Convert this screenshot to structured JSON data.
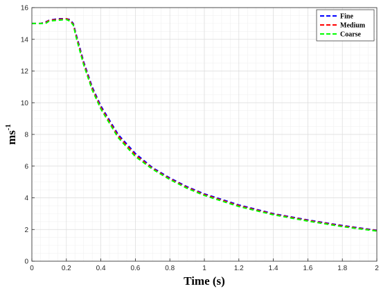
{
  "chart_data": {
    "type": "line",
    "xlabel": "Time (s)",
    "ylabel_base": "ms",
    "ylabel_exp": "-1",
    "xlim": [
      0,
      2
    ],
    "ylim": [
      0,
      16
    ],
    "xticks": [
      0,
      0.2,
      0.4,
      0.6,
      0.8,
      1,
      1.2,
      1.4,
      1.6,
      1.8,
      2
    ],
    "xtick_labels": [
      "0",
      "0.2",
      "0.4",
      "0.6",
      "0.8",
      "1",
      "1.2",
      "1.4",
      "1.6",
      "1.8",
      "2"
    ],
    "yticks": [
      0,
      2,
      4,
      6,
      8,
      10,
      12,
      14,
      16
    ],
    "ytick_labels": [
      "0",
      "2",
      "4",
      "6",
      "8",
      "10",
      "12",
      "14",
      "16"
    ],
    "grid": true,
    "legend_position": "top-right",
    "series": [
      {
        "name": "Fine",
        "color": "#0000ff",
        "x": [
          0,
          0.05,
          0.08,
          0.1,
          0.15,
          0.2,
          0.22,
          0.24,
          0.26,
          0.3,
          0.35,
          0.4,
          0.5,
          0.6,
          0.7,
          0.8,
          0.9,
          1.0,
          1.2,
          1.4,
          1.6,
          1.8,
          2.0
        ],
        "y": [
          15.0,
          15.0,
          15.1,
          15.2,
          15.3,
          15.3,
          15.25,
          15.0,
          14.2,
          12.6,
          11.0,
          9.8,
          8.0,
          6.8,
          5.9,
          5.25,
          4.7,
          4.25,
          3.55,
          3.0,
          2.6,
          2.25,
          1.95
        ]
      },
      {
        "name": "Medium",
        "color": "#ff0000",
        "x": [
          0,
          0.05,
          0.08,
          0.1,
          0.15,
          0.2,
          0.22,
          0.24,
          0.26,
          0.3,
          0.35,
          0.4,
          0.5,
          0.6,
          0.7,
          0.8,
          0.9,
          1.0,
          1.2,
          1.4,
          1.6,
          1.8,
          2.0
        ],
        "y": [
          15.0,
          15.0,
          15.05,
          15.2,
          15.25,
          15.3,
          15.2,
          14.95,
          14.1,
          12.5,
          10.9,
          9.7,
          7.9,
          6.7,
          5.85,
          5.2,
          4.65,
          4.2,
          3.5,
          2.97,
          2.57,
          2.22,
          1.93
        ]
      },
      {
        "name": "Coarse",
        "color": "#00ff00",
        "x": [
          0,
          0.05,
          0.08,
          0.1,
          0.15,
          0.2,
          0.22,
          0.24,
          0.26,
          0.3,
          0.35,
          0.4,
          0.5,
          0.6,
          0.7,
          0.8,
          0.9,
          1.0,
          1.2,
          1.4,
          1.6,
          1.8,
          2.0
        ],
        "y": [
          15.0,
          15.0,
          15.0,
          15.15,
          15.2,
          15.25,
          15.15,
          14.9,
          14.0,
          12.4,
          10.8,
          9.6,
          7.8,
          6.6,
          5.8,
          5.15,
          4.6,
          4.15,
          3.45,
          2.93,
          2.53,
          2.18,
          1.9
        ]
      }
    ]
  }
}
